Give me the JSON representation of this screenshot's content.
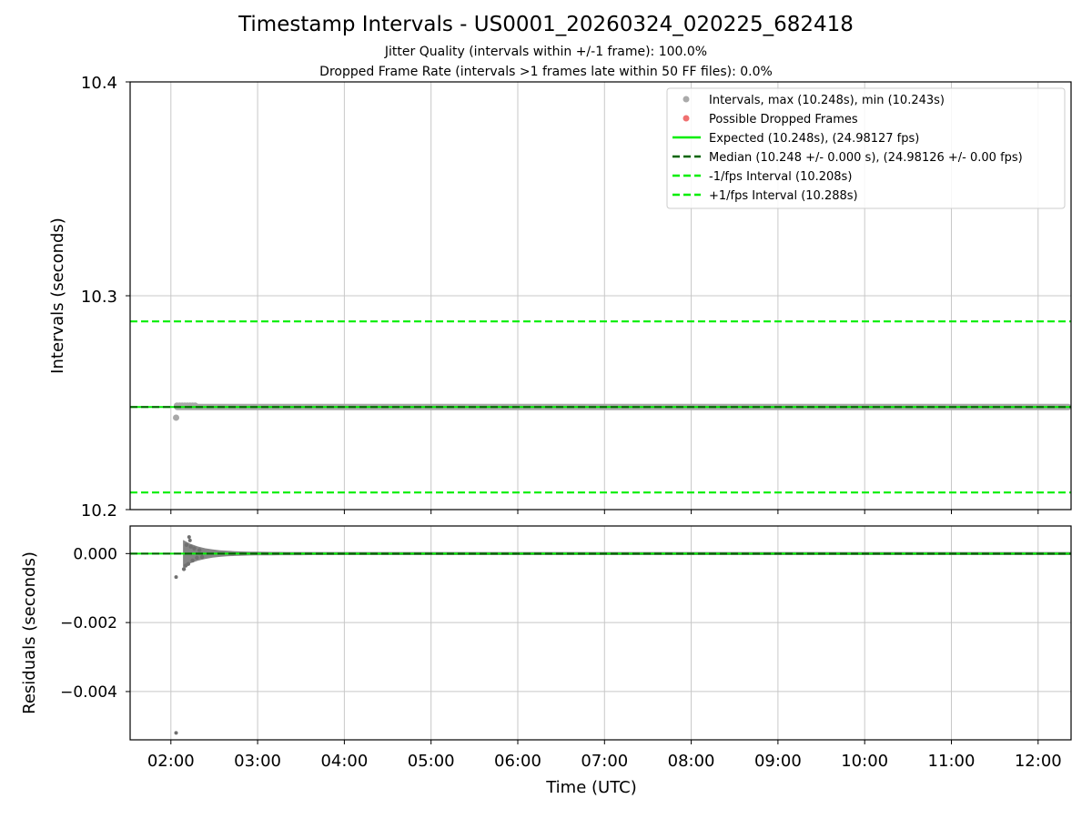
{
  "chart_data": {
    "type": "scatter",
    "title": "Timestamp Intervals - US0001_20260324_020225_682418",
    "subtitles": [
      "Jitter Quality (intervals within +/-1 frame): 100.0%",
      "Dropped Frame Rate (intervals >1 frames late within 50 FF files): 0.0%"
    ],
    "xlabel": "Time (UTC)",
    "x_ticks": [
      "02:00",
      "03:00",
      "04:00",
      "05:00",
      "06:00",
      "07:00",
      "08:00",
      "09:00",
      "10:00",
      "11:00",
      "12:00"
    ],
    "xlim_hours": [
      1.53,
      12.38
    ],
    "top_panel": {
      "ylabel": "Intervals (seconds)",
      "ylim": [
        10.2,
        10.4
      ],
      "y_ticks": [
        "10.2",
        "10.3",
        "10.4"
      ],
      "y_tick_values": [
        10.2,
        10.3,
        10.4
      ],
      "expected": 10.248,
      "median": 10.248,
      "minus_interval": 10.208,
      "plus_interval": 10.288,
      "intervals_min": 10.243,
      "intervals_max": 10.248,
      "min_point_time_hours": 2.06,
      "data_start_hours": 2.04
    },
    "bottom_panel": {
      "ylabel": "Residuals (seconds)",
      "ylim": [
        -0.0054,
        0.0008
      ],
      "y_ticks": [
        "0.000",
        "−0.002",
        "−0.004"
      ],
      "y_tick_values": [
        0.0,
        -0.002,
        -0.004
      ],
      "outliers": [
        {
          "t": 2.06,
          "r": -0.0052
        },
        {
          "t": 2.06,
          "r": -0.00068
        },
        {
          "t": 2.21,
          "r": 0.00048
        },
        {
          "t": 2.22,
          "r": 0.00038
        }
      ]
    },
    "legend": {
      "position": "upper right",
      "entries": [
        {
          "label": "Intervals, max (10.248s), min (10.243s)",
          "style": "marker",
          "color": "#aaaaaa"
        },
        {
          "label": "Possible Dropped Frames",
          "style": "marker",
          "color": "#f07070"
        },
        {
          "label": "Expected (10.248s), (24.98127 fps)",
          "style": "solid",
          "color": "#00ee00"
        },
        {
          "label": "Median (10.248 +/- 0.000 s), (24.98126 +/- 0.00 fps)",
          "style": "dashed",
          "color": "#006400"
        },
        {
          "label": "-1/fps Interval (10.208s)",
          "style": "dashed",
          "color": "#00ee00"
        },
        {
          "label": "+1/fps Interval (10.288s)",
          "style": "dashed",
          "color": "#00ee00"
        }
      ]
    },
    "colors": {
      "points": "#a8a8a8",
      "residual_points": "#707070",
      "expected": "#00ee00",
      "median": "#006400",
      "interval_bounds": "#00ee00",
      "grid": "#c8c8c8"
    }
  }
}
